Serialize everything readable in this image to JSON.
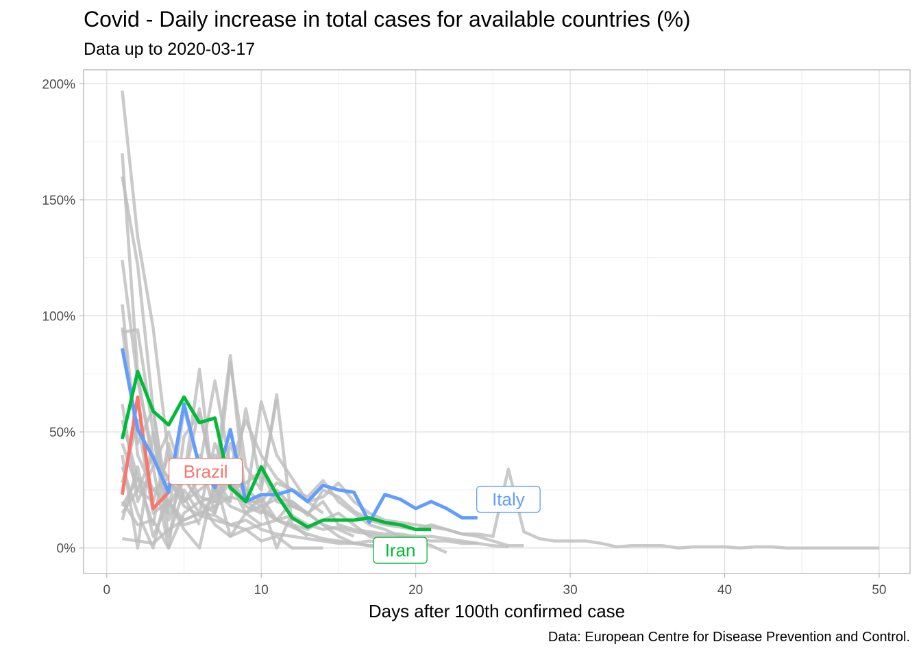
{
  "title": "Covid - Daily increase in total cases for available countries (%)",
  "subtitle": "Data up to 2020-03-17",
  "caption": "Data: European Centre for Disease Prevention and Control.",
  "chart_data": {
    "type": "line",
    "xlabel": "Days after 100th confirmed case",
    "ylabel": "",
    "xlim": [
      -1.5,
      52
    ],
    "ylim": [
      -11,
      206
    ],
    "x_ticks": [
      0,
      10,
      20,
      30,
      40,
      50
    ],
    "y_ticks": [
      0,
      50,
      100,
      150,
      200
    ],
    "y_tick_labels": [
      "0%",
      "50%",
      "100%",
      "150%",
      "200%"
    ],
    "grid": true,
    "series": [
      {
        "name": "Brazil",
        "highlight": true,
        "color": "#f8766d",
        "x": [
          1,
          2,
          3,
          4
        ],
        "y": [
          23,
          65,
          17,
          24
        ]
      },
      {
        "name": "Iran",
        "highlight": true,
        "color": "#00ba38",
        "x": [
          1,
          2,
          3,
          4,
          5,
          6,
          7,
          8,
          9,
          10,
          11,
          12,
          13,
          14,
          15,
          16,
          17,
          18,
          19,
          20,
          21
        ],
        "y": [
          47,
          76,
          59,
          53,
          65,
          54,
          56,
          26,
          20,
          35,
          23,
          13,
          9,
          12,
          12,
          12,
          13,
          11,
          10,
          8,
          8
        ]
      },
      {
        "name": "Italy",
        "highlight": true,
        "color": "#619cff",
        "x": [
          1,
          2,
          3,
          4,
          5,
          6,
          7,
          8,
          9,
          10,
          11,
          12,
          13,
          14,
          15,
          16,
          17,
          18,
          19,
          20,
          21,
          22,
          23,
          24
        ],
        "y": [
          86,
          51,
          39,
          24,
          62,
          35,
          26,
          51,
          20,
          23,
          23,
          25,
          20,
          27,
          25,
          24,
          11,
          23,
          21,
          17,
          20,
          17,
          13,
          13
        ]
      },
      {
        "highlight": false,
        "x": [
          1,
          2,
          3,
          4,
          5,
          6
        ],
        "y": [
          197,
          134,
          95,
          40,
          22,
          10
        ]
      },
      {
        "highlight": false,
        "x": [
          1,
          2,
          3,
          4,
          5,
          6,
          7,
          8
        ],
        "y": [
          170,
          75,
          35,
          50,
          30,
          60,
          25,
          20
        ]
      },
      {
        "highlight": false,
        "x": [
          1,
          2,
          3,
          4,
          5,
          6,
          7,
          8,
          9,
          10,
          11,
          12,
          13
        ],
        "y": [
          160,
          122,
          60,
          18,
          30,
          77,
          20,
          80,
          35,
          25,
          66,
          10,
          5
        ]
      },
      {
        "highlight": false,
        "x": [
          1,
          2,
          3,
          4,
          5,
          6,
          7,
          8,
          9,
          10,
          11,
          12,
          13,
          14
        ],
        "y": [
          124,
          72,
          40,
          30,
          20,
          25,
          30,
          83,
          20,
          63,
          40,
          30,
          20,
          15
        ]
      },
      {
        "highlight": false,
        "x": [
          1,
          2,
          3,
          4,
          5,
          6,
          7,
          8,
          9,
          10,
          11,
          12,
          13,
          14,
          15,
          16,
          17,
          18,
          19,
          20,
          21,
          22,
          23,
          24,
          25,
          26,
          27,
          28,
          29,
          30,
          31,
          32,
          33,
          34,
          35,
          36,
          37,
          38,
          39,
          40,
          41,
          42,
          43,
          44,
          45,
          46,
          47,
          48,
          49,
          50
        ],
        "y": [
          105,
          40,
          25,
          30,
          35,
          22,
          20,
          28,
          15,
          18,
          21,
          20,
          14,
          25,
          22,
          16,
          12,
          10,
          9,
          8,
          10,
          8,
          6,
          6,
          5,
          34,
          7,
          4,
          3,
          3,
          3,
          2,
          0.5,
          1,
          1,
          1,
          0,
          0.5,
          0.5,
          0.5,
          0,
          0.5,
          0.5,
          0,
          0,
          0,
          0,
          0,
          0,
          0
        ]
      },
      {
        "highlight": false,
        "x": [
          1,
          2,
          3,
          4,
          5,
          6,
          7,
          8,
          9,
          10,
          11,
          12,
          13,
          14,
          15,
          16,
          17,
          18,
          19,
          20,
          21,
          22
        ],
        "y": [
          95,
          45,
          60,
          12,
          30,
          40,
          15,
          45,
          25,
          20,
          28,
          25,
          22,
          29,
          20,
          15,
          10,
          8,
          5,
          3,
          1,
          -2
        ]
      },
      {
        "highlight": false,
        "x": [
          1,
          2,
          3,
          4,
          5,
          6,
          7,
          8,
          9,
          10,
          11,
          12,
          13,
          14,
          15,
          16,
          17,
          18,
          19,
          20,
          21,
          22,
          23,
          24,
          25,
          26,
          27
        ],
        "y": [
          93,
          94,
          50,
          15,
          60,
          35,
          72,
          35,
          55,
          40,
          30,
          25,
          20,
          22,
          28,
          20,
          15,
          12,
          11,
          10,
          9,
          8,
          6,
          5,
          3,
          1,
          1
        ]
      },
      {
        "highlight": false,
        "x": [
          1,
          2,
          3,
          4,
          5,
          6,
          7,
          8,
          9,
          10,
          11
        ],
        "y": [
          62,
          20,
          35,
          0,
          48,
          58,
          30,
          20,
          60,
          27,
          64
        ]
      },
      {
        "highlight": false,
        "x": [
          1,
          2,
          3,
          4,
          5,
          6,
          7,
          8,
          9,
          10,
          11,
          12,
          13,
          14,
          15,
          16,
          17,
          18
        ],
        "y": [
          55,
          30,
          10,
          45,
          20,
          30,
          40,
          25,
          28,
          33,
          20,
          18,
          15,
          10,
          5,
          2,
          3,
          2
        ]
      },
      {
        "highlight": false,
        "x": [
          1,
          2,
          3,
          4,
          5,
          6,
          7,
          8,
          9,
          10,
          11,
          12,
          13,
          14,
          15,
          16,
          17,
          18,
          19,
          20,
          21,
          22,
          23,
          24,
          25,
          26
        ],
        "y": [
          45,
          25,
          20,
          40,
          30,
          20,
          22,
          30,
          18,
          15,
          25,
          18,
          15,
          20,
          10,
          8,
          7,
          6,
          6,
          5,
          5,
          4,
          3,
          2,
          1,
          0.5
        ]
      },
      {
        "highlight": false,
        "x": [
          1,
          2,
          3,
          4,
          5,
          6,
          7,
          8,
          9,
          10,
          11,
          12
        ],
        "y": [
          40,
          0,
          50,
          5,
          25,
          15,
          45,
          30,
          20,
          20,
          0,
          15
        ]
      },
      {
        "highlight": false,
        "x": [
          1,
          2,
          3,
          4,
          5,
          6,
          7,
          8,
          9,
          10,
          11,
          12,
          13,
          14,
          15,
          16
        ],
        "y": [
          35,
          15,
          0,
          28,
          30,
          20,
          15,
          35,
          22,
          18,
          12,
          20,
          15,
          10,
          8,
          5
        ]
      },
      {
        "highlight": false,
        "x": [
          1,
          2,
          3,
          4,
          5,
          6,
          7,
          8,
          9,
          10,
          11,
          12,
          13,
          14,
          15,
          16,
          17,
          18,
          19,
          20
        ],
        "y": [
          28,
          55,
          15,
          20,
          10,
          12,
          25,
          18,
          15,
          22,
          12,
          10,
          8,
          12,
          15,
          10,
          5,
          3,
          2,
          1
        ]
      },
      {
        "highlight": false,
        "x": [
          1,
          2,
          3,
          4,
          5,
          6,
          7,
          8,
          9,
          10,
          11,
          12,
          13,
          14
        ],
        "y": [
          20,
          10,
          12,
          0,
          15,
          20,
          10,
          5,
          8,
          3,
          5,
          0,
          0,
          0
        ]
      },
      {
        "highlight": false,
        "x": [
          1,
          2,
          3,
          4,
          5,
          6,
          7,
          8,
          9,
          10,
          11,
          12,
          13,
          14,
          15,
          16,
          17,
          18,
          19,
          20,
          21,
          22,
          23,
          24
        ],
        "y": [
          18,
          30,
          25,
          20,
          12,
          15,
          18,
          22,
          20,
          16,
          12,
          14,
          10,
          8,
          9,
          7,
          6,
          5,
          5,
          4,
          3,
          3,
          2,
          2
        ]
      },
      {
        "highlight": false,
        "x": [
          1,
          2,
          3,
          4,
          5,
          6,
          7,
          8,
          9,
          10
        ],
        "y": [
          12,
          35,
          5,
          20,
          8,
          0,
          30,
          5,
          15,
          10
        ]
      },
      {
        "highlight": false,
        "x": [
          1,
          2,
          3,
          4,
          5,
          6,
          7,
          8,
          9,
          10,
          11,
          12,
          13,
          14,
          15,
          16,
          17,
          18,
          19
        ],
        "y": [
          4,
          3,
          2,
          8,
          12,
          15,
          14,
          10,
          12,
          8,
          6,
          5,
          4,
          3,
          2,
          2,
          1,
          1,
          0
        ]
      },
      {
        "highlight": false,
        "x": [
          1,
          2,
          3,
          4,
          5,
          6,
          7,
          8,
          9,
          10,
          11,
          12,
          13,
          14,
          15,
          16,
          17,
          18
        ],
        "y": [
          15,
          25,
          40,
          30,
          18,
          14,
          12,
          10,
          8,
          10,
          12,
          9,
          6,
          4,
          3,
          2,
          1,
          0
        ]
      }
    ]
  }
}
